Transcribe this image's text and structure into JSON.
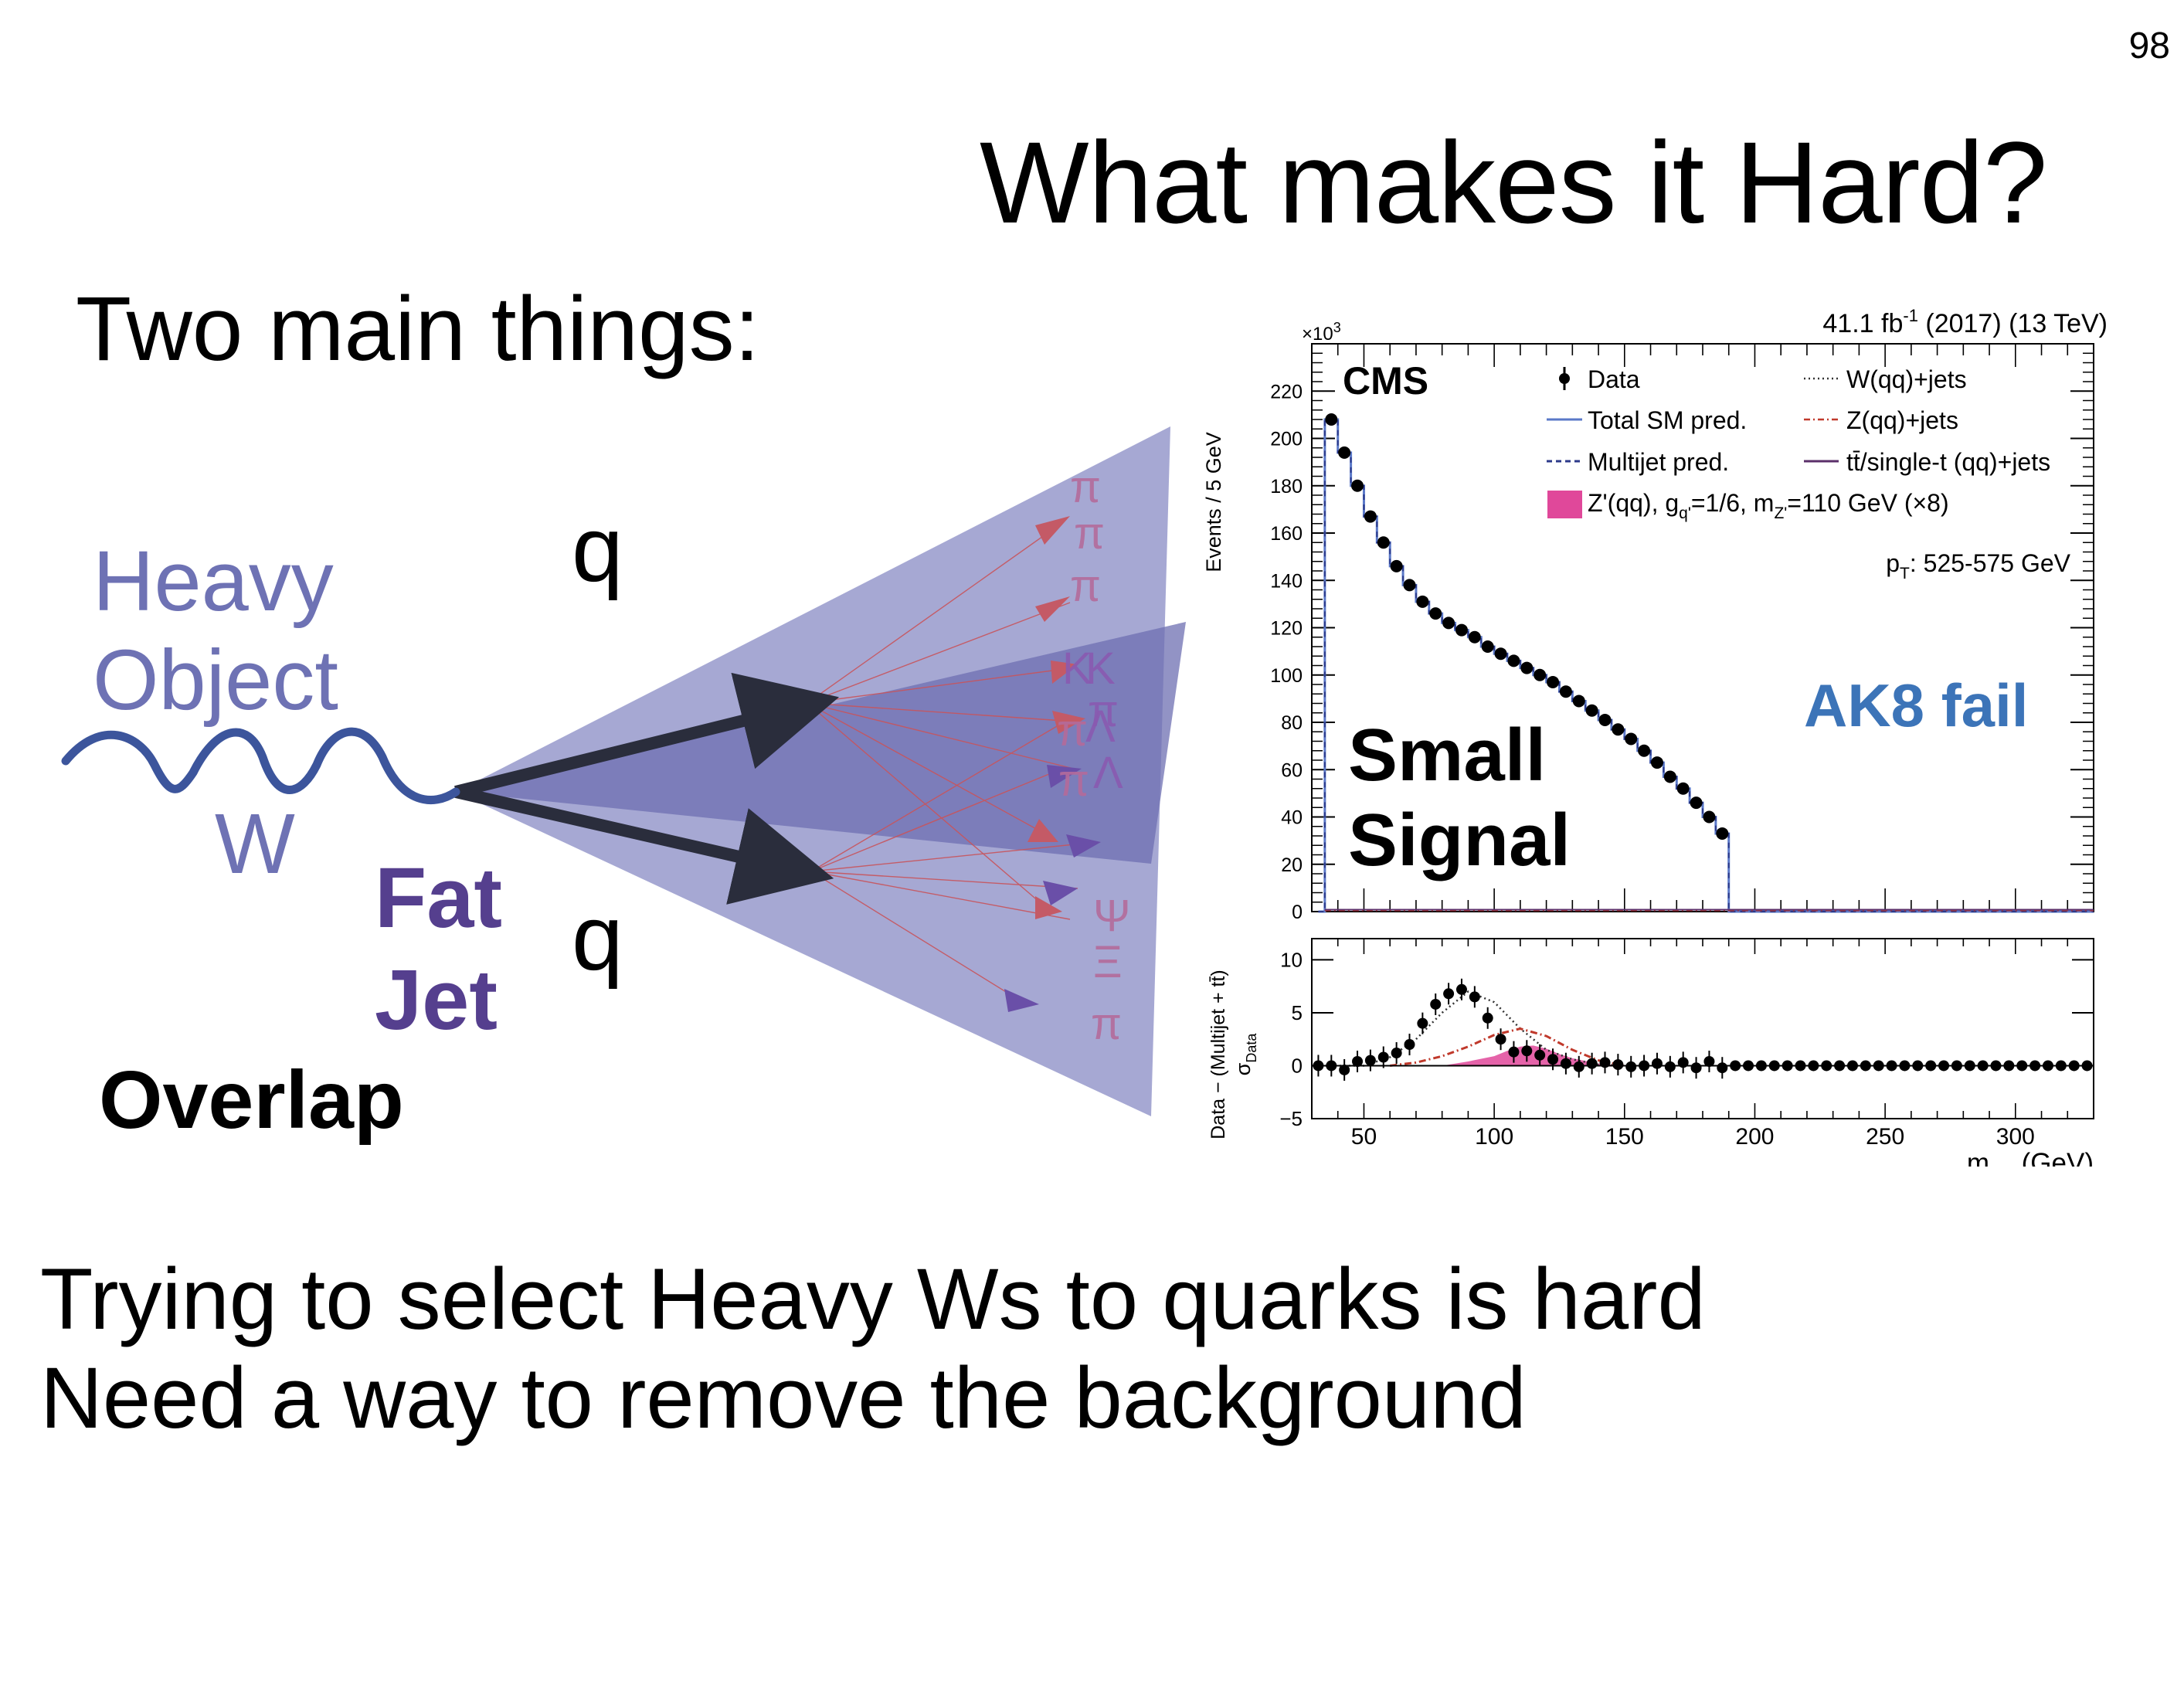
{
  "page_number": "98",
  "title": "What makes it Hard?",
  "subtitle": "Two main things:",
  "diagram": {
    "heavy_label": "Heavy",
    "object_label": "Object",
    "w_label": "W",
    "q_top": "q",
    "q_bottom": "q",
    "fat_label": "Fat",
    "jet_label": "Jet",
    "overlap_label": "Overlap",
    "particles": [
      "π",
      "π",
      "π",
      "K",
      "K",
      "π",
      "π",
      "Λ",
      "π",
      "Λ",
      "Ψ",
      "Ξ",
      "π"
    ],
    "colors": {
      "wave": "#3c559c",
      "heavy_text": "#6e72b4",
      "fat_jet": "#553f8e",
      "cone": "#8d8fc6",
      "particle_text": "#b46a9a",
      "arrow": "#c8545c"
    }
  },
  "bottom_lines": [
    "Trying to select Heavy Ws to quarks is hard",
    "Need a way to remove the background"
  ],
  "chart_data": {
    "type": "line",
    "experiment": "CMS",
    "header": "41.1 fb-1 (2017) (13 TeV)",
    "lumi_value": "41.1 fb",
    "lumi_exponent": "-1",
    "lumi_rest": " (2017) (13 TeV)",
    "yscale_label": "×10",
    "yscale_exponent": "3",
    "ylabel": "Events / 5 GeV",
    "xlabel_main": "m",
    "xlabel_sub": "SD",
    "xlabel_rest": " (GeV)",
    "ratio_ylabel_top": "Data − (Multijet + tt̄)",
    "ratio_ylabel_bottom": "σ",
    "ratio_ylabel_sub": "Data",
    "category_label": "AK8 fail",
    "overlay_line1": "Small",
    "overlay_line2": "Signal",
    "pt_label": "p",
    "pt_sub": "T",
    "pt_rest": ": 525-575 GeV",
    "xlim": [
      30,
      330
    ],
    "ylim": [
      0,
      240
    ],
    "ratio_ylim": [
      -5,
      12
    ],
    "x_ticks": [
      50,
      100,
      150,
      200,
      250,
      300
    ],
    "y_ticks": [
      0,
      20,
      40,
      60,
      80,
      100,
      120,
      140,
      160,
      180,
      200,
      220
    ],
    "ratio_y_ticks": [
      -5,
      0,
      5,
      10
    ],
    "legend": {
      "data": "Data",
      "total": "Total SM pred.",
      "multijet": "Multijet pred.",
      "wjets": "W(qq)+jets",
      "zjets": "Z(qq)+jets",
      "ttbar": "tt̄/single-t (qq)+jets",
      "signal_a": "Z'(qq), g",
      "signal_a_sub": "q'",
      "signal_b": "=1/6, m",
      "signal_b_sub": "Z'",
      "signal_c": "=110 GeV (×8)"
    },
    "colors": {
      "total": "#5a78c8",
      "multijet": "#2c3a8a",
      "signal": "#e0489a",
      "category": "#3c74b8",
      "z": "#c0392b",
      "ttbar": "#5b2f6a"
    },
    "main_data": {
      "x": [
        37.5,
        42.5,
        47.5,
        52.5,
        57.5,
        62.5,
        67.5,
        72.5,
        77.5,
        82.5,
        87.5,
        92.5,
        97.5,
        102.5,
        107.5,
        112.5,
        117.5,
        122.5,
        127.5,
        132.5,
        137.5,
        142.5,
        147.5,
        152.5,
        157.5,
        162.5,
        167.5,
        172.5,
        177.5,
        182.5,
        187.5
      ],
      "y": [
        208,
        194,
        180,
        167,
        156,
        146,
        138,
        131,
        126,
        122,
        119,
        116,
        112,
        109,
        106,
        103,
        100,
        97,
        93,
        89,
        85,
        81,
        77,
        73,
        68,
        63,
        57,
        52,
        46,
        40,
        33
      ]
    },
    "ratio_data": {
      "x": [
        32.5,
        37.5,
        42.5,
        47.5,
        52.5,
        57.5,
        62.5,
        67.5,
        72.5,
        77.5,
        82.5,
        87.5,
        92.5,
        97.5,
        102.5,
        107.5,
        112.5,
        117.5,
        122.5,
        127.5,
        132.5,
        137.5,
        142.5,
        147.5,
        152.5,
        157.5,
        162.5,
        167.5,
        172.5,
        177.5,
        182.5,
        187.5
      ],
      "y": [
        0,
        0,
        -0.4,
        0.4,
        0.5,
        0.8,
        1.2,
        2.0,
        4.0,
        5.8,
        6.8,
        7.2,
        6.5,
        4.5,
        2.5,
        1.3,
        1.4,
        1.0,
        0.6,
        0.2,
        -0.1,
        0.2,
        0.3,
        0.1,
        -0.1,
        0,
        0.2,
        -0.1,
        0.3,
        -0.2,
        0.4,
        -0.2
      ]
    },
    "ratio_total": {
      "x": [
        30,
        50,
        60,
        70,
        80,
        90,
        100,
        110,
        120,
        130,
        140,
        150
      ],
      "y": [
        0,
        0,
        0.8,
        2.5,
        5.0,
        7.0,
        6.0,
        3.5,
        1.5,
        0.6,
        0.1,
        0
      ]
    },
    "ratio_z": {
      "x": [
        60,
        70,
        80,
        90,
        100,
        110,
        120,
        130,
        140,
        150
      ],
      "y": [
        0,
        0.3,
        0.9,
        1.8,
        2.9,
        3.5,
        2.8,
        1.5,
        0.5,
        0
      ]
    },
    "ratio_signal": {
      "x": [
        80,
        90,
        100,
        105,
        110,
        115,
        120,
        125,
        130,
        140,
        150
      ],
      "y": [
        0,
        0.4,
        0.9,
        1.4,
        1.8,
        1.9,
        1.6,
        1.1,
        0.7,
        0.2,
        0
      ]
    }
  }
}
